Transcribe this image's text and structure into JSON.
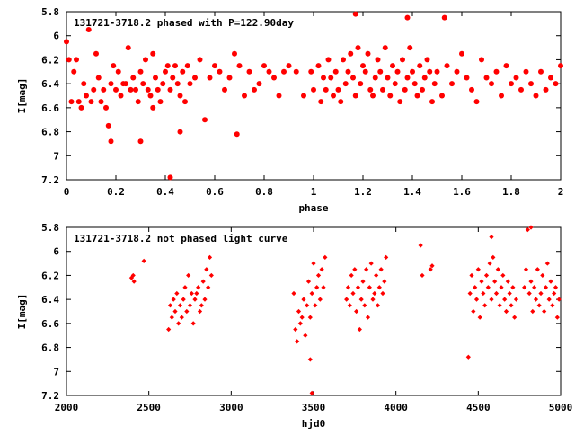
{
  "chart_data": [
    {
      "type": "scatter",
      "title": "131721-3718.2 phased with P=122.90day",
      "xlabel": "phase",
      "ylabel": "I[mag]",
      "xlim": [
        0,
        2
      ],
      "ylim": [
        7.2,
        5.8
      ],
      "y_inverted": true,
      "x_ticks": [
        "0",
        "0.2",
        "0.4",
        "0.6",
        "0.8",
        "1",
        "1.2",
        "1.4",
        "1.6",
        "1.8",
        "2"
      ],
      "y_ticks": [
        "5.8",
        "6",
        "6.2",
        "6.4",
        "6.6",
        "6.8",
        "7",
        "7.2"
      ],
      "marker": "filled-circle",
      "color": "#ff0000",
      "x": [
        0.0,
        0.02,
        0.03,
        0.04,
        0.05,
        0.06,
        0.07,
        0.08,
        0.09,
        0.1,
        0.11,
        0.12,
        0.13,
        0.14,
        0.15,
        0.16,
        0.17,
        0.18,
        0.19,
        0.2,
        0.21,
        0.22,
        0.23,
        0.24,
        0.25,
        0.26,
        0.27,
        0.28,
        0.29,
        0.3,
        0.31,
        0.32,
        0.33,
        0.34,
        0.35,
        0.36,
        0.37,
        0.38,
        0.39,
        0.4,
        0.41,
        0.42,
        0.43,
        0.44,
        0.45,
        0.46,
        0.47,
        0.48,
        0.49,
        0.5,
        0.52,
        0.54,
        0.56,
        0.58,
        0.6,
        0.62,
        0.64,
        0.66,
        0.68,
        0.7,
        0.72,
        0.74,
        0.76,
        0.78,
        0.8,
        0.82,
        0.84,
        0.86,
        0.88,
        0.9,
        0.93,
        0.96,
        0.99,
        1.0,
        1.02,
        1.03,
        1.04,
        1.05,
        1.06,
        1.07,
        1.08,
        1.09,
        1.1,
        1.11,
        1.12,
        1.13,
        1.14,
        1.15,
        1.16,
        1.17,
        1.18,
        1.19,
        1.2,
        1.21,
        1.22,
        1.23,
        1.24,
        1.25,
        1.26,
        1.27,
        1.28,
        1.29,
        1.3,
        1.31,
        1.32,
        1.33,
        1.34,
        1.35,
        1.36,
        1.37,
        1.38,
        1.39,
        1.4,
        1.41,
        1.42,
        1.43,
        1.44,
        1.45,
        1.46,
        1.47,
        1.48,
        1.49,
        1.5,
        1.52,
        1.54,
        1.56,
        1.58,
        1.6,
        1.62,
        1.64,
        1.66,
        1.68,
        1.7,
        1.72,
        1.74,
        1.76,
        1.78,
        1.8,
        1.82,
        1.84,
        1.86,
        1.88,
        1.9,
        1.92,
        1.94,
        1.96,
        1.98,
        2.0,
        0.01,
        0.35,
        0.42,
        0.46,
        1.38,
        1.53,
        1.17,
        0.3,
        0.18,
        0.69
      ],
      "y": [
        6.05,
        6.55,
        6.3,
        6.2,
        6.55,
        6.6,
        6.4,
        6.5,
        5.95,
        6.55,
        6.45,
        6.15,
        6.35,
        6.55,
        6.45,
        6.6,
        6.75,
        6.4,
        6.25,
        6.45,
        6.3,
        6.5,
        6.4,
        6.4,
        6.1,
        6.45,
        6.35,
        6.45,
        6.55,
        6.3,
        6.4,
        6.2,
        6.45,
        6.5,
        6.6,
        6.35,
        6.45,
        6.55,
        6.4,
        6.3,
        6.25,
        6.45,
        6.35,
        6.25,
        6.4,
        6.5,
        6.3,
        6.55,
        6.25,
        6.4,
        6.35,
        6.2,
        6.7,
        6.35,
        6.25,
        6.3,
        6.45,
        6.35,
        6.15,
        6.25,
        6.5,
        6.3,
        6.45,
        6.4,
        6.25,
        6.3,
        6.35,
        6.5,
        6.3,
        6.25,
        6.3,
        6.5,
        6.3,
        6.45,
        6.25,
        6.55,
        6.35,
        6.45,
        6.2,
        6.35,
        6.5,
        6.3,
        6.45,
        6.55,
        6.2,
        6.4,
        6.3,
        6.15,
        6.35,
        6.5,
        6.1,
        6.4,
        6.25,
        6.3,
        6.15,
        6.45,
        6.5,
        6.35,
        6.2,
        6.3,
        6.45,
        6.1,
        6.35,
        6.5,
        6.25,
        6.4,
        6.3,
        6.55,
        6.2,
        6.45,
        6.35,
        6.1,
        6.3,
        6.4,
        6.5,
        6.25,
        6.45,
        6.35,
        6.2,
        6.3,
        6.55,
        6.4,
        6.3,
        6.5,
        6.25,
        6.4,
        6.3,
        6.15,
        6.35,
        6.45,
        6.55,
        6.2,
        6.35,
        6.4,
        6.3,
        6.5,
        6.25,
        6.4,
        6.35,
        6.45,
        6.3,
        6.4,
        6.5,
        6.3,
        6.45,
        6.35,
        6.4,
        6.25,
        6.2,
        6.15,
        7.18,
        6.8,
        5.85,
        5.85,
        5.82,
        6.88,
        6.88,
        6.82
      ],
      "title_position": "top-left",
      "grid": false
    },
    {
      "type": "scatter",
      "title": "131721-3718.2 not phased light curve",
      "xlabel": "hjd0",
      "ylabel": "I[mag]",
      "xlim": [
        2000,
        5000
      ],
      "ylim": [
        7.2,
        5.8
      ],
      "y_inverted": true,
      "x_ticks": [
        "2000",
        "2500",
        "3000",
        "3500",
        "4000",
        "4500",
        "5000"
      ],
      "y_ticks": [
        "5.8",
        "6",
        "6.2",
        "6.4",
        "6.6",
        "6.8",
        "7",
        "7.2"
      ],
      "marker": "filled-diamond",
      "color": "#ff0000",
      "x": [
        2395,
        2405,
        2410,
        2470,
        2620,
        2630,
        2640,
        2650,
        2660,
        2670,
        2680,
        2690,
        2700,
        2710,
        2720,
        2730,
        2740,
        2750,
        2760,
        2770,
        2780,
        2790,
        2800,
        2810,
        2820,
        2830,
        2840,
        2850,
        2860,
        2870,
        2880,
        3380,
        3390,
        3400,
        3410,
        3420,
        3430,
        3440,
        3450,
        3460,
        3470,
        3480,
        3490,
        3500,
        3510,
        3520,
        3530,
        3540,
        3550,
        3560,
        3570,
        3700,
        3710,
        3720,
        3730,
        3740,
        3750,
        3760,
        3770,
        3780,
        3790,
        3800,
        3810,
        3820,
        3830,
        3840,
        3850,
        3860,
        3870,
        3880,
        3890,
        3900,
        3910,
        3920,
        3930,
        3940,
        4150,
        4160,
        4210,
        4220,
        4450,
        4460,
        4470,
        4480,
        4490,
        4500,
        4510,
        4520,
        4530,
        4540,
        4550,
        4560,
        4570,
        4580,
        4590,
        4600,
        4610,
        4620,
        4630,
        4640,
        4650,
        4660,
        4670,
        4680,
        4690,
        4700,
        4710,
        4720,
        4730,
        4780,
        4790,
        4800,
        4810,
        4820,
        4830,
        4840,
        4850,
        4860,
        4870,
        4880,
        4890,
        4900,
        4910,
        4920,
        4930,
        4940,
        4950,
        4960,
        4970,
        4980,
        4990,
        3480,
        3490,
        4440,
        4820,
        4580
      ],
      "y": [
        6.22,
        6.2,
        6.25,
        6.08,
        6.65,
        6.45,
        6.55,
        6.4,
        6.5,
        6.35,
        6.6,
        6.45,
        6.55,
        6.4,
        6.3,
        6.5,
        6.2,
        6.45,
        6.35,
        6.6,
        6.4,
        6.35,
        6.3,
        6.5,
        6.45,
        6.25,
        6.4,
        6.15,
        6.3,
        6.05,
        6.2,
        6.35,
        6.65,
        6.75,
        6.5,
        6.6,
        6.55,
        6.4,
        6.7,
        6.45,
        6.25,
        6.55,
        6.35,
        6.1,
        6.45,
        6.3,
        6.2,
        6.4,
        6.15,
        6.3,
        6.05,
        6.4,
        6.3,
        6.45,
        6.2,
        6.35,
        6.15,
        6.5,
        6.3,
        6.65,
        6.4,
        6.25,
        6.45,
        6.15,
        6.55,
        6.3,
        6.1,
        6.4,
        6.35,
        6.2,
        6.45,
        6.3,
        6.15,
        6.35,
        6.25,
        6.05,
        5.95,
        6.2,
        6.15,
        6.12,
        6.35,
        6.2,
        6.5,
        6.3,
        6.4,
        6.15,
        6.55,
        6.25,
        6.35,
        6.45,
        6.2,
        6.3,
        6.1,
        6.4,
        6.05,
        6.25,
        6.35,
        6.15,
        6.45,
        6.3,
        6.2,
        6.4,
        6.5,
        6.25,
        6.35,
        6.45,
        6.3,
        6.55,
        6.4,
        6.3,
        6.15,
        5.82,
        6.35,
        6.25,
        6.5,
        6.3,
        6.4,
        6.15,
        6.45,
        6.35,
        6.2,
        6.5,
        6.3,
        6.1,
        6.4,
        6.25,
        6.45,
        6.35,
        6.3,
        6.55,
        6.4,
        6.9,
        7.18,
        6.88,
        5.8,
        5.88
      ],
      "title_position": "top-left",
      "grid": false
    }
  ]
}
